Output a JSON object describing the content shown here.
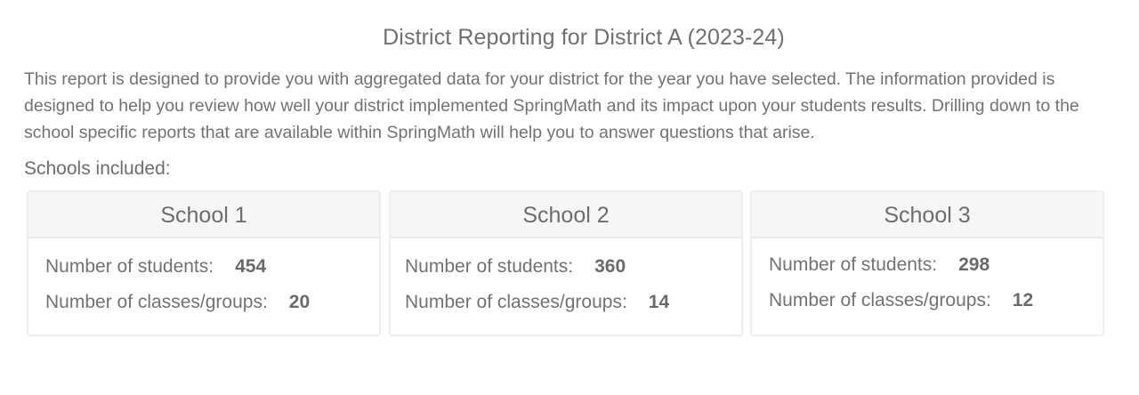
{
  "report": {
    "title": "District Reporting for District A (2023-24)",
    "intro": "This report is designed to provide you with aggregated data for your district for the year you have selected. The information provided is designed to help you review how well your district implemented SpringMath and its impact upon your students results. Drilling down to the school specific reports that are available within SpringMath will help you to answer questions that arise.",
    "schools_label": "Schools included:"
  },
  "labels": {
    "students": "Number of students:",
    "classes": "Number of classes/groups:"
  },
  "schools": [
    {
      "name": "School 1",
      "students": "454",
      "classes": "20"
    },
    {
      "name": "School 2",
      "students": "360",
      "classes": "14"
    },
    {
      "name": "School 3",
      "students": "298",
      "classes": "12"
    }
  ]
}
